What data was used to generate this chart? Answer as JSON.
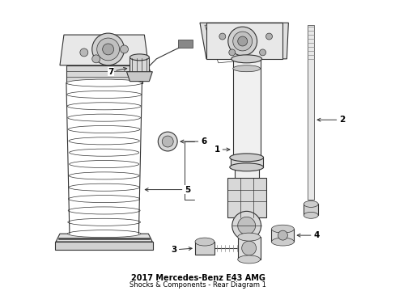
{
  "title": "2017 Mercedes-Benz E43 AMG",
  "subtitle": "Shocks & Components - Rear Diagram 1",
  "bg_color": "#ffffff",
  "line_color": "#333333",
  "label_color": "#000000",
  "figsize": [
    4.89,
    3.6
  ],
  "dpi": 100
}
